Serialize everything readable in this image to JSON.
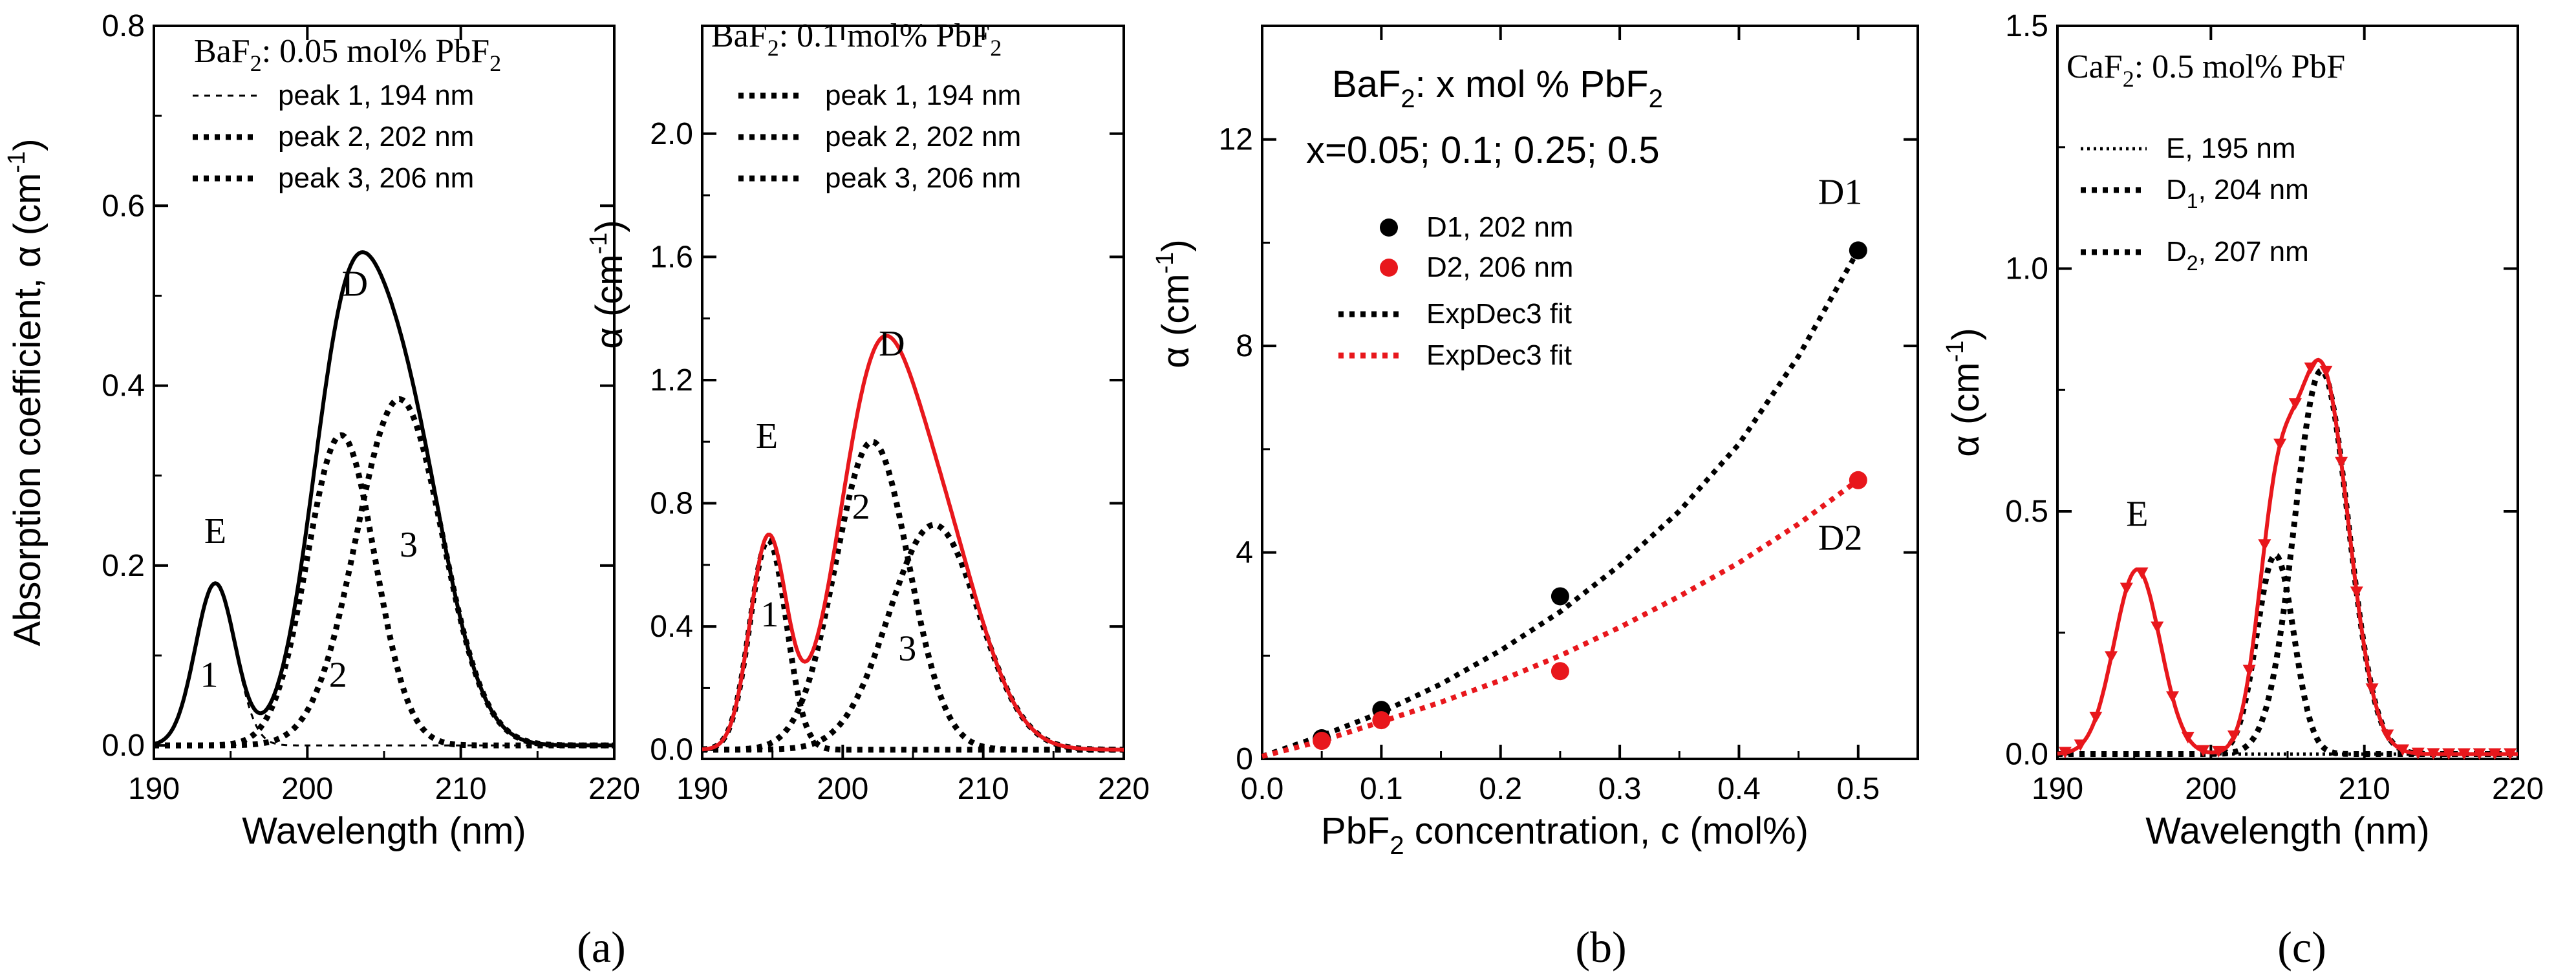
{
  "panel_labels": [
    "(a)",
    "(b)",
    "(c)"
  ],
  "chart_data": [
    {
      "id": "a1",
      "type": "line",
      "title_main": "BaF",
      "title_sub": "2",
      "title_rest": ": 0.05 mol% PbF",
      "title_sub2": "2",
      "xlabel": "Wavelength (nm)",
      "ylabel": "Absorption coefficient, α (cm",
      "ylabel_sup": "-1",
      "ylabel_close": ")",
      "xlim": [
        190,
        220
      ],
      "ylim": [
        -0.015,
        0.8
      ],
      "xticks": [
        190,
        200,
        210,
        220
      ],
      "xtick_labels": [
        "190",
        "200",
        "210",
        "220"
      ],
      "yticks": [
        0.0,
        0.2,
        0.4,
        0.6,
        0.8
      ],
      "ytick_labels": [
        "0.0",
        "0.2",
        "0.4",
        "0.6",
        "0.8"
      ],
      "legend": [
        "peak 1, 194 nm",
        "peak 2, 202 nm",
        "peak 3, 206 nm"
      ],
      "peaks": [
        {
          "name": "peak 1",
          "center": 194.0,
          "height": 0.18,
          "width": 1.3,
          "style": "dashed-thin"
        },
        {
          "name": "peak 2",
          "center": 202.2,
          "height": 0.345,
          "width": 2.2,
          "style": "dotted"
        },
        {
          "name": "peak 3",
          "center": 206.0,
          "height": 0.385,
          "width": 2.8,
          "style": "dotted"
        }
      ],
      "sum_color": "#000000",
      "annotations": [
        {
          "text": "E",
          "x": 194.0,
          "y": 0.225
        },
        {
          "text": "1",
          "x": 193.6,
          "y": 0.065
        },
        {
          "text": "2",
          "x": 202.0,
          "y": 0.065
        },
        {
          "text": "3",
          "x": 206.6,
          "y": 0.21
        },
        {
          "text": "D",
          "x": 203.1,
          "y": 0.5
        }
      ]
    },
    {
      "id": "a2",
      "type": "line",
      "title_main": "BaF",
      "title_sub": "2",
      "title_rest": ": 0.1 mol% PbF",
      "title_sub2": "2",
      "xlabel": "",
      "ylabel": "α (cm",
      "ylabel_sup": "-1",
      "ylabel_close": ")",
      "xlim": [
        190,
        220
      ],
      "ylim": [
        -0.03,
        2.35
      ],
      "xticks": [
        190,
        200,
        210,
        220
      ],
      "xtick_labels": [
        "190",
        "200",
        "210",
        "220"
      ],
      "yticks": [
        0.0,
        0.4,
        0.8,
        1.2,
        1.6,
        2.0
      ],
      "ytick_labels": [
        "0.0",
        "0.4",
        "0.8",
        "1.2",
        "1.6",
        "2.0"
      ],
      "legend": [
        "peak 1, 194 nm",
        "peak 2, 202 nm",
        "peak 3, 206 nm"
      ],
      "peaks": [
        {
          "name": "peak 1",
          "center": 194.7,
          "height": 0.68,
          "width": 1.3,
          "style": "dotted"
        },
        {
          "name": "peak 2",
          "center": 202.1,
          "height": 1.0,
          "width": 2.6,
          "style": "dotted"
        },
        {
          "name": "peak 3",
          "center": 206.5,
          "height": 0.73,
          "width": 3.2,
          "style": "dotted"
        }
      ],
      "sum_color": "#e8171c",
      "annotations": [
        {
          "text": "E",
          "x": 194.6,
          "y": 0.98
        },
        {
          "text": "1",
          "x": 194.8,
          "y": 0.4
        },
        {
          "text": "2",
          "x": 201.3,
          "y": 0.75
        },
        {
          "text": "3",
          "x": 204.6,
          "y": 0.29
        },
        {
          "text": "D",
          "x": 203.5,
          "y": 1.28
        }
      ]
    },
    {
      "id": "b",
      "type": "scatter",
      "title_line1_main": "BaF",
      "title_line1_sub": "2",
      "title_line1_rest": ": x mol % PbF",
      "title_line1_sub2": "2",
      "title_line2": "x=0.05; 0.1; 0.25; 0.5",
      "xlabel_main": "PbF",
      "xlabel_sub": "2",
      "xlabel_rest": " concentration, c (mol%)",
      "ylabel": "α (cm",
      "ylabel_sup": "-1",
      "ylabel_close": ")",
      "xlim": [
        0.0,
        0.55
      ],
      "ylim": [
        0,
        14.2
      ],
      "xticks": [
        0.0,
        0.1,
        0.2,
        0.3,
        0.4,
        0.5
      ],
      "xtick_labels": [
        "0.0",
        "0.1",
        "0.2",
        "0.3",
        "0.4",
        "0.5"
      ],
      "yticks": [
        0,
        4,
        8,
        12
      ],
      "ytick_labels": [
        "0",
        "4",
        "8",
        "12"
      ],
      "series": [
        {
          "name": "D1, 202 nm",
          "color": "#000000",
          "x": [
            0.05,
            0.1,
            0.25,
            0.5
          ],
          "y": [
            0.4,
            0.95,
            3.15,
            9.85
          ]
        },
        {
          "name": "D2, 206 nm",
          "color": "#e8171c",
          "x": [
            0.05,
            0.1,
            0.25,
            0.5
          ],
          "y": [
            0.35,
            0.75,
            1.7,
            5.4
          ]
        }
      ],
      "fits": [
        {
          "name": "ExpDec3 fit",
          "color": "#000000",
          "points": [
            [
              0.0,
              0.05
            ],
            [
              0.05,
              0.45
            ],
            [
              0.1,
              0.9
            ],
            [
              0.15,
              1.45
            ],
            [
              0.2,
              2.1
            ],
            [
              0.25,
              2.85
            ],
            [
              0.3,
              3.75
            ],
            [
              0.35,
              4.8
            ],
            [
              0.4,
              6.1
            ],
            [
              0.45,
              7.8
            ],
            [
              0.5,
              9.85
            ]
          ]
        },
        {
          "name": "ExpDec3 fit",
          "color": "#e8171c",
          "points": [
            [
              0.0,
              0.05
            ],
            [
              0.05,
              0.35
            ],
            [
              0.1,
              0.72
            ],
            [
              0.15,
              1.1
            ],
            [
              0.2,
              1.52
            ],
            [
              0.25,
              2.0
            ],
            [
              0.3,
              2.55
            ],
            [
              0.35,
              3.15
            ],
            [
              0.4,
              3.8
            ],
            [
              0.45,
              4.55
            ],
            [
              0.5,
              5.4
            ]
          ]
        }
      ],
      "legend": [
        "D1, 202 nm",
        "D2, 206 nm",
        "ExpDec3 fit",
        "ExpDec3 fit"
      ],
      "annotations": [
        {
          "text": "D1",
          "x": 0.485,
          "y": 10.75
        },
        {
          "text": "D2",
          "x": 0.485,
          "y": 4.05
        }
      ]
    },
    {
      "id": "c",
      "type": "line",
      "title_main": "CaF",
      "title_sub": "2",
      "title_rest": ": 0.5 mol% PbF",
      "xlabel": "Wavelength (nm)",
      "ylabel": "α (cm",
      "ylabel_sup": "-1",
      "ylabel_close": ")",
      "xlim": [
        190,
        220
      ],
      "ylim": [
        -0.01,
        1.5
      ],
      "xticks": [
        190,
        200,
        210,
        220
      ],
      "xtick_labels": [
        "190",
        "200",
        "210",
        "220"
      ],
      "yticks": [
        0.0,
        0.5,
        1.0,
        1.5
      ],
      "ytick_labels": [
        "0.0",
        "0.5",
        "1.0",
        "1.5"
      ],
      "legend_main": [
        "E,   195 nm",
        "D",
        "D"
      ],
      "legend_sub": [
        "",
        "1",
        "2"
      ],
      "legend_rest": [
        "",
        ", 204 nm",
        ", 207 nm"
      ],
      "peaks": [
        {
          "name": "E",
          "center": 195.2,
          "height": 0.38,
          "width": 1.5,
          "style": "dotted-thin"
        },
        {
          "name": "D1",
          "center": 204.2,
          "height": 0.41,
          "width": 1.2,
          "style": "dotted"
        },
        {
          "name": "D2",
          "center": 207.2,
          "height": 0.79,
          "width": 1.75,
          "style": "dotted"
        }
      ],
      "sum_color": "#e8171c",
      "annotations": [
        {
          "text": "E",
          "x": 195.2,
          "y": 0.47
        }
      ]
    }
  ]
}
